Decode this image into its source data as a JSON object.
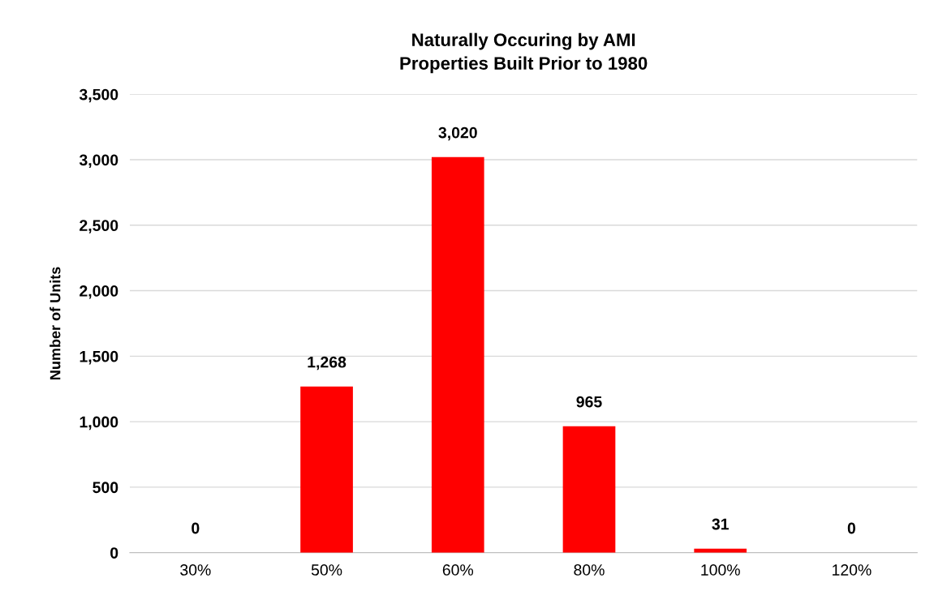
{
  "chart_data": {
    "type": "bar",
    "title": "Naturally Occuring by AMI\nProperties Built Prior to 1980",
    "ylabel": "Number of Units",
    "categories": [
      "30%",
      "50%",
      "60%",
      "80%",
      "100%",
      "120%"
    ],
    "values": [
      0,
      1268,
      3020,
      965,
      31,
      0
    ],
    "color": "#ff0000",
    "value_labels": [
      "0",
      "1,268",
      "3,020",
      "965",
      "31",
      "0"
    ],
    "ylim": [
      0,
      3500
    ],
    "yticks": [
      {
        "value": 0,
        "label": "0"
      },
      {
        "value": 500,
        "label": "500"
      },
      {
        "value": 1000,
        "label": "1,000"
      },
      {
        "value": 1500,
        "label": "1,500"
      },
      {
        "value": 2000,
        "label": "2,000"
      },
      {
        "value": 2500,
        "label": "2,500"
      },
      {
        "value": 3000,
        "label": "3,000"
      },
      {
        "value": 3500,
        "label": "3,500"
      }
    ],
    "grid": "y",
    "legend": false
  }
}
